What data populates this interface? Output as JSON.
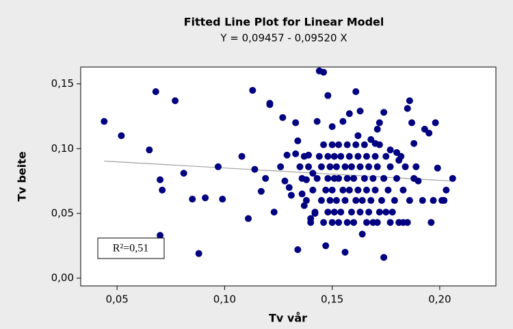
{
  "chart_data": {
    "type": "scatter",
    "title": "Fitted Line Plot for Linear Model",
    "subtitle": "Y = 0,09457 - 0,09520 X",
    "fit": {
      "intercept": 0.09457,
      "slope": -0.0952
    },
    "x_label": "Tv vår",
    "y_label": "Tv beite",
    "annotation": "R²=0,51",
    "color": "#000080",
    "fit_color": "#a0a0a0",
    "xlim": [
      0.0331,
      0.2261
    ],
    "ylim": [
      -0.006,
      0.163
    ],
    "xticks": [
      {
        "value": 0.05,
        "label": "0,05"
      },
      {
        "value": 0.1,
        "label": "0,10"
      },
      {
        "value": 0.15,
        "label": "0,15"
      },
      {
        "value": 0.2,
        "label": "0,20"
      }
    ],
    "yticks": [
      {
        "value": 0.0,
        "label": "0,00"
      },
      {
        "value": 0.05,
        "label": "0,05"
      },
      {
        "value": 0.1,
        "label": "0,10"
      },
      {
        "value": 0.15,
        "label": "0,15"
      }
    ],
    "x": [
      0.044,
      0.052,
      0.065,
      0.068,
      0.07,
      0.071,
      0.07,
      0.077,
      0.081,
      0.085,
      0.088,
      0.091,
      0.097,
      0.099,
      0.108,
      0.111,
      0.113,
      0.114,
      0.117,
      0.119,
      0.121,
      0.121,
      0.123,
      0.126,
      0.127,
      0.128,
      0.129,
      0.13,
      0.131,
      0.133,
      0.133,
      0.134,
      0.134,
      0.135,
      0.136,
      0.137,
      0.138,
      0.139,
      0.14,
      0.141,
      0.142,
      0.143,
      0.144,
      0.146,
      0.147,
      0.148,
      0.15,
      0.155,
      0.156,
      0.158,
      0.161,
      0.162,
      0.163,
      0.164,
      0.168,
      0.17,
      0.171,
      0.172,
      0.174,
      0.174,
      0.177,
      0.18,
      0.181,
      0.183,
      0.185,
      0.186,
      0.187,
      0.188,
      0.189,
      0.19,
      0.192,
      0.193,
      0.195,
      0.196,
      0.197,
      0.198,
      0.199,
      0.201,
      0.202,
      0.203,
      0.206,
      0.14,
      0.146,
      0.15,
      0.153,
      0.157,
      0.16,
      0.166,
      0.169,
      0.171,
      0.177,
      0.181,
      0.185,
      0.142,
      0.148,
      0.151,
      0.154,
      0.159,
      0.163,
      0.167,
      0.172,
      0.175,
      0.178,
      0.138,
      0.145,
      0.149,
      0.152,
      0.156,
      0.161,
      0.164,
      0.168,
      0.173,
      0.179,
      0.186,
      0.141,
      0.147,
      0.15,
      0.155,
      0.158,
      0.162,
      0.166,
      0.17,
      0.176,
      0.183,
      0.136,
      0.143,
      0.148,
      0.151,
      0.153,
      0.157,
      0.16,
      0.165,
      0.169,
      0.174,
      0.18,
      0.188,
      0.139,
      0.145,
      0.149,
      0.152,
      0.156,
      0.159,
      0.163,
      0.167,
      0.171,
      0.177,
      0.184,
      0.137,
      0.144,
      0.148,
      0.151,
      0.154,
      0.158,
      0.162,
      0.166,
      0.17,
      0.175,
      0.182,
      0.146,
      0.15,
      0.153,
      0.157,
      0.161,
      0.165,
      0.172
    ],
    "values": [
      0.121,
      0.11,
      0.099,
      0.144,
      0.076,
      0.068,
      0.033,
      0.137,
      0.081,
      0.061,
      0.019,
      0.062,
      0.086,
      0.061,
      0.094,
      0.046,
      0.145,
      0.084,
      0.067,
      0.077,
      0.135,
      0.134,
      0.051,
      0.086,
      0.124,
      0.075,
      0.095,
      0.07,
      0.064,
      0.096,
      0.12,
      0.022,
      0.106,
      0.086,
      0.065,
      0.056,
      0.076,
      0.095,
      0.046,
      0.081,
      0.05,
      0.121,
      0.16,
      0.159,
      0.025,
      0.141,
      0.117,
      0.121,
      0.02,
      0.127,
      0.144,
      0.11,
      0.129,
      0.034,
      0.107,
      0.104,
      0.115,
      0.12,
      0.128,
      0.016,
      0.099,
      0.097,
      0.091,
      0.043,
      0.131,
      0.137,
      0.12,
      0.104,
      0.086,
      0.075,
      0.06,
      0.115,
      0.112,
      0.043,
      0.06,
      0.12,
      0.085,
      0.06,
      0.06,
      0.068,
      0.077,
      0.043,
      0.043,
      0.043,
      0.043,
      0.043,
      0.043,
      0.043,
      0.043,
      0.043,
      0.043,
      0.043,
      0.043,
      0.051,
      0.051,
      0.051,
      0.051,
      0.051,
      0.051,
      0.051,
      0.051,
      0.051,
      0.051,
      0.06,
      0.06,
      0.06,
      0.06,
      0.06,
      0.06,
      0.06,
      0.06,
      0.06,
      0.06,
      0.06,
      0.068,
      0.068,
      0.068,
      0.068,
      0.068,
      0.068,
      0.068,
      0.068,
      0.068,
      0.068,
      0.077,
      0.077,
      0.077,
      0.077,
      0.077,
      0.077,
      0.077,
      0.077,
      0.077,
      0.077,
      0.077,
      0.077,
      0.086,
      0.086,
      0.086,
      0.086,
      0.086,
      0.086,
      0.086,
      0.086,
      0.086,
      0.086,
      0.086,
      0.094,
      0.094,
      0.094,
      0.094,
      0.094,
      0.094,
      0.094,
      0.094,
      0.094,
      0.094,
      0.094,
      0.103,
      0.103,
      0.103,
      0.103,
      0.103,
      0.103,
      0.103
    ]
  }
}
